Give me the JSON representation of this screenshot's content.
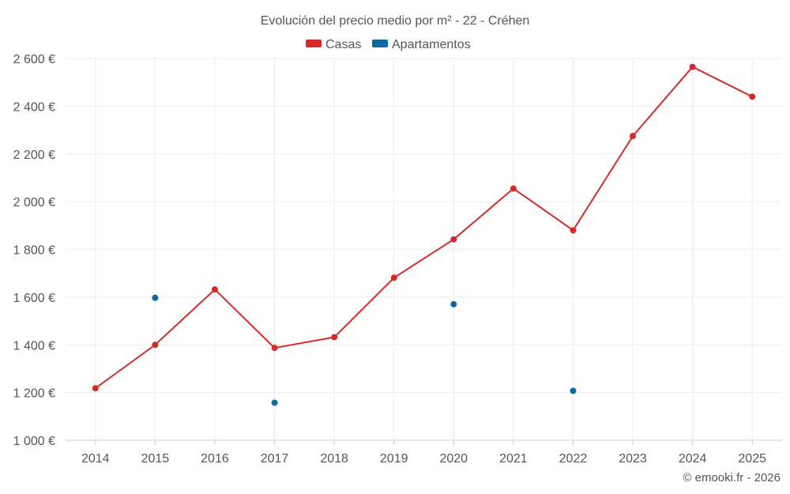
{
  "chart_data": {
    "type": "line",
    "title": "Evolución del precio medio por m² - 22 - Créhen",
    "categories": [
      "2014",
      "2015",
      "2016",
      "2017",
      "2018",
      "2019",
      "2020",
      "2021",
      "2022",
      "2023",
      "2024",
      "2025"
    ],
    "series": [
      {
        "name": "Casas",
        "color": "#d42a2a",
        "style": "line",
        "values": [
          1218,
          1400,
          1632,
          1387,
          1432,
          1681,
          1842,
          2055,
          1880,
          2275,
          2565,
          2440
        ]
      },
      {
        "name": "Apartamentos",
        "color": "#0a6aa1",
        "style": "points",
        "values": [
          null,
          1597,
          null,
          1157,
          null,
          null,
          1570,
          null,
          1207,
          null,
          null,
          null
        ]
      }
    ],
    "ylim": [
      1000,
      2600
    ],
    "yticks": [
      1000,
      1200,
      1400,
      1600,
      1800,
      2000,
      2200,
      2400,
      2600
    ],
    "ytick_labels": [
      "1 000 €",
      "1 200 €",
      "1 400 €",
      "1 600 €",
      "1 800 €",
      "2 000 €",
      "2 200 €",
      "2 400 €",
      "2 600 €"
    ],
    "xlabel": "",
    "ylabel": "",
    "grid": true,
    "legend_position": "top-center",
    "credit": "© emooki.fr - 2026"
  }
}
